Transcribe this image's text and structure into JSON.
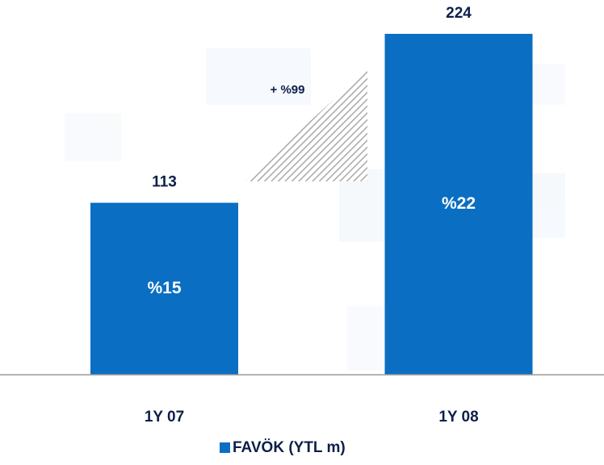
{
  "chart_data": {
    "type": "bar",
    "categories": [
      "1Y 07",
      "1Y 08"
    ],
    "series": [
      {
        "name": "FAVÖK (YTL m)",
        "color": "#0a6fc2",
        "values": [
          113,
          224
        ]
      }
    ],
    "inner_labels": [
      "%15",
      "%22"
    ],
    "annotation": "+ %99",
    "ylim": [
      0,
      224
    ]
  }
}
